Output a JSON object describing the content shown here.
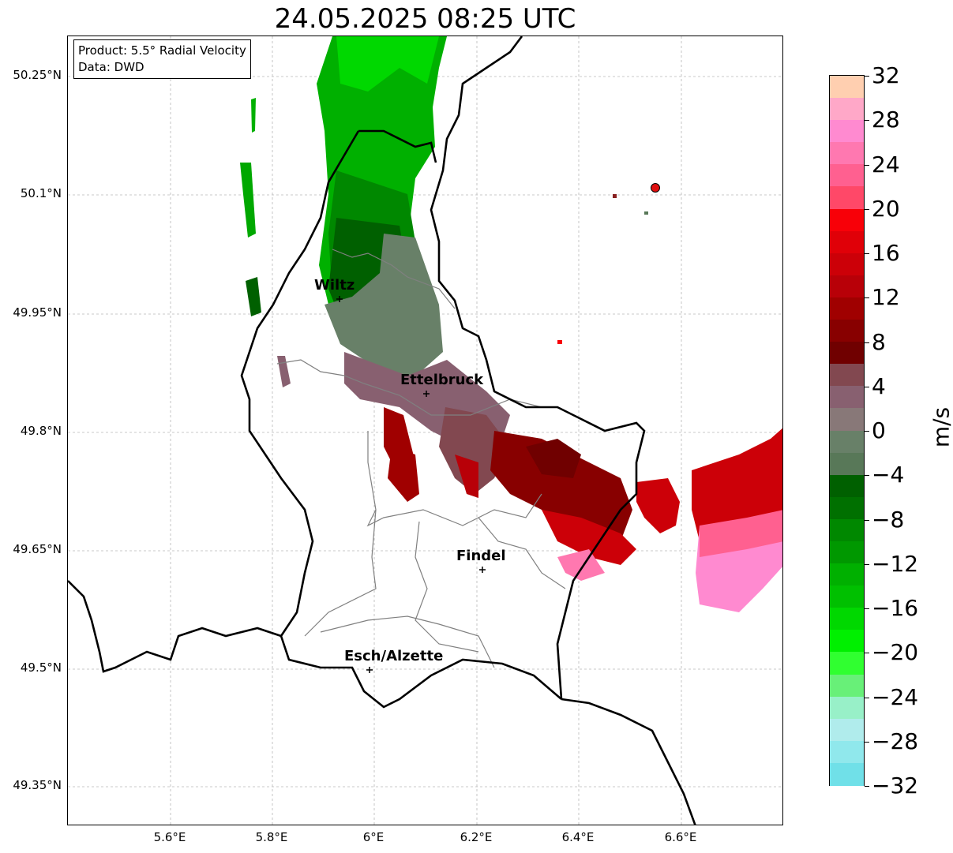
{
  "title": "24.05.2025 08:25 UTC",
  "info_box": {
    "product": "Product: 5.5° Radial Velocity",
    "source": "Data: DWD"
  },
  "y_axis_labels": [
    "50.25°N",
    "50.1°N",
    "49.95°N",
    "49.8°N",
    "49.65°N",
    "49.5°N",
    "49.35°N"
  ],
  "x_axis_labels": [
    "5.6°E",
    "5.8°E",
    "6°E",
    "6.2°E",
    "6.4°E",
    "6.6°E"
  ],
  "cities": [
    {
      "name": "Wiltz"
    },
    {
      "name": "Ettelbruck"
    },
    {
      "name": "Findel"
    },
    {
      "name": "Esch/Alzette"
    }
  ],
  "colorbar": {
    "unit": "m/s",
    "tick_labels": [
      "32",
      "28",
      "24",
      "20",
      "16",
      "12",
      "8",
      "4",
      "0",
      "−4",
      "−8",
      "−12",
      "−16",
      "−20",
      "−24",
      "−28",
      "−32"
    ],
    "colors_top_to_bottom": [
      "#ffcfb0",
      "#ffa8c8",
      "#ff8ad0",
      "#ff78b0",
      "#ff6090",
      "#ff4868",
      "#f80008",
      "#e00008",
      "#cc0008",
      "#b80008",
      "#a00000",
      "#880000",
      "#700000",
      "#824850",
      "#886070",
      "#887878",
      "#688068",
      "#587858",
      "#006000",
      "#007000",
      "#008800",
      "#009800",
      "#00b000",
      "#00c000",
      "#00d800",
      "#00f000",
      "#30ff30",
      "#68f078",
      "#98f0c8",
      "#b0ecec",
      "#90e8ec",
      "#70e0e8"
    ]
  }
}
